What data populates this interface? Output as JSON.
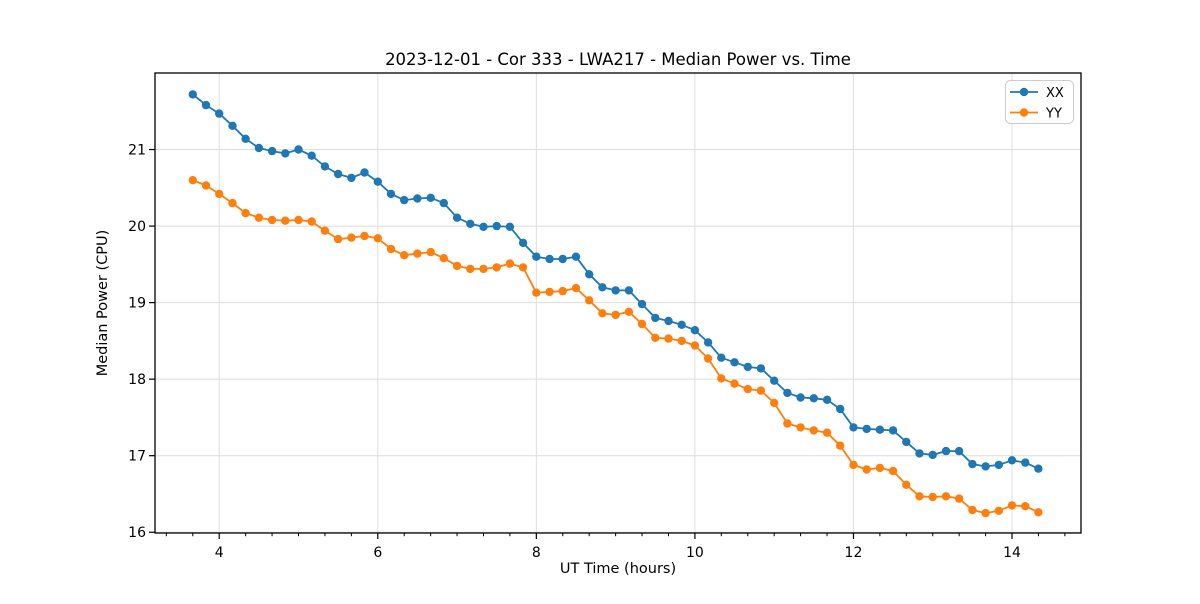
{
  "chart_data": {
    "type": "line",
    "title": "2023-12-01 - Cor 333 - LWA217 - Median Power vs. Time",
    "xlabel": "UT Time (hours)",
    "ylabel": "Median Power (CPU)",
    "xlim": [
      3.19,
      14.87
    ],
    "ylim": [
      15.99,
      22.0
    ],
    "xticks": [
      4,
      6,
      8,
      10,
      12,
      14
    ],
    "yticks": [
      16,
      17,
      18,
      19,
      20,
      21
    ],
    "x_minor_tick_step": 0.33333,
    "grid": "major-both",
    "legend": {
      "position": "upper right",
      "entries": [
        "XX",
        "YY"
      ]
    },
    "style": {
      "grid_color": "#dedede",
      "spine_color": "#000000",
      "legend_border_color": "#cccccc",
      "series_colors": [
        "#1f77b4",
        "#ff7f0e"
      ],
      "marker": "o"
    },
    "x": [
      3.667,
      3.833,
      4.0,
      4.167,
      4.333,
      4.5,
      4.667,
      4.833,
      5.0,
      5.167,
      5.333,
      5.5,
      5.667,
      5.833,
      6.0,
      6.167,
      6.333,
      6.5,
      6.667,
      6.833,
      7.0,
      7.167,
      7.333,
      7.5,
      7.667,
      7.833,
      8.0,
      8.167,
      8.333,
      8.5,
      8.667,
      8.833,
      9.0,
      9.167,
      9.333,
      9.5,
      9.667,
      9.833,
      10.0,
      10.167,
      10.333,
      10.5,
      10.667,
      10.833,
      11.0,
      11.167,
      11.333,
      11.5,
      11.667,
      11.833,
      12.0,
      12.167,
      12.333,
      12.5,
      12.667,
      12.833,
      13.0,
      13.167,
      13.333,
      13.5,
      13.667,
      13.833,
      14.0,
      14.167,
      14.333
    ],
    "series": [
      {
        "name": "XX",
        "color": "#1f77b4",
        "values": [
          21.72,
          21.58,
          21.47,
          21.31,
          21.14,
          21.02,
          20.98,
          20.95,
          21.0,
          20.92,
          20.78,
          20.68,
          20.63,
          20.7,
          20.58,
          20.42,
          20.34,
          20.36,
          20.37,
          20.3,
          20.11,
          20.03,
          19.99,
          20.0,
          19.99,
          19.78,
          19.6,
          19.57,
          19.57,
          19.6,
          19.37,
          19.2,
          19.16,
          19.16,
          18.98,
          18.8,
          18.76,
          18.71,
          18.64,
          18.48,
          18.28,
          18.22,
          18.16,
          18.14,
          17.98,
          17.82,
          17.76,
          17.75,
          17.73,
          17.61,
          17.37,
          17.35,
          17.34,
          17.33,
          17.18,
          17.03,
          17.01,
          17.06,
          17.06,
          16.89,
          16.86,
          16.88,
          16.94,
          16.91,
          16.83
        ]
      },
      {
        "name": "YY",
        "color": "#ff7f0e",
        "values": [
          20.6,
          20.53,
          20.42,
          20.3,
          20.17,
          20.11,
          20.08,
          20.07,
          20.08,
          20.06,
          19.94,
          19.83,
          19.85,
          19.87,
          19.84,
          19.7,
          19.62,
          19.64,
          19.66,
          19.58,
          19.48,
          19.44,
          19.44,
          19.46,
          19.51,
          19.46,
          19.13,
          19.14,
          19.15,
          19.19,
          19.03,
          18.86,
          18.84,
          18.88,
          18.72,
          18.54,
          18.53,
          18.5,
          18.44,
          18.27,
          18.01,
          17.94,
          17.87,
          17.85,
          17.69,
          17.42,
          17.37,
          17.33,
          17.3,
          17.13,
          16.88,
          16.82,
          16.84,
          16.8,
          16.62,
          16.47,
          16.46,
          16.47,
          16.44,
          16.29,
          16.25,
          16.28,
          16.35,
          16.34,
          16.26
        ]
      }
    ]
  }
}
